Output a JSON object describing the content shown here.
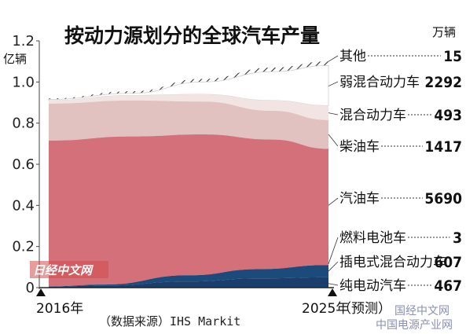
{
  "chart_data": {
    "type": "area",
    "title": "按动力源划分的全球汽车产量",
    "ylabel": "亿辆",
    "value_unit": "万辆",
    "x": [
      "2016年",
      "2025年（预测）"
    ],
    "xlabels": [
      "2016年",
      "2025年",
      "（预测）"
    ],
    "ylim": [
      0,
      1.2
    ],
    "yticks": [
      "0",
      "0.2",
      "0.4",
      "0.6",
      "0.8",
      "1.0",
      "1.2"
    ],
    "source": "（数据来源）IHS Markit",
    "stack_order_bottom_to_top": [
      "纯电动汽车",
      "插电式混合动力车",
      "燃料电池车",
      "汽油车",
      "柴油车",
      "混合动力车",
      "弱混合动力车",
      "其他"
    ],
    "series": [
      {
        "name": "其他",
        "value_2025": "15",
        "color": "hatch"
      },
      {
        "name": "弱混合动力车",
        "value_2025": "2292",
        "color": "#ffffff"
      },
      {
        "name": "混合动力车",
        "value_2025": "493",
        "color": "#f2e4e2"
      },
      {
        "name": "柴油车",
        "value_2025": "1417",
        "color": "#e2c2c0"
      },
      {
        "name": "汽油车",
        "value_2025": "5690",
        "color": "#d4707a"
      },
      {
        "name": "燃料电池车",
        "value_2025": "3",
        "color": "#1c4a7a"
      },
      {
        "name": "插电式混合动力车",
        "value_2025": "607",
        "color": "#1c4a7a"
      },
      {
        "name": "纯电动汽车",
        "value_2025": "467",
        "color": "#1b3f6c"
      }
    ]
  },
  "watermarks": {
    "left": "日经中文网",
    "right_top": "国经中文网",
    "right_bottom": "中国电源产业网"
  }
}
